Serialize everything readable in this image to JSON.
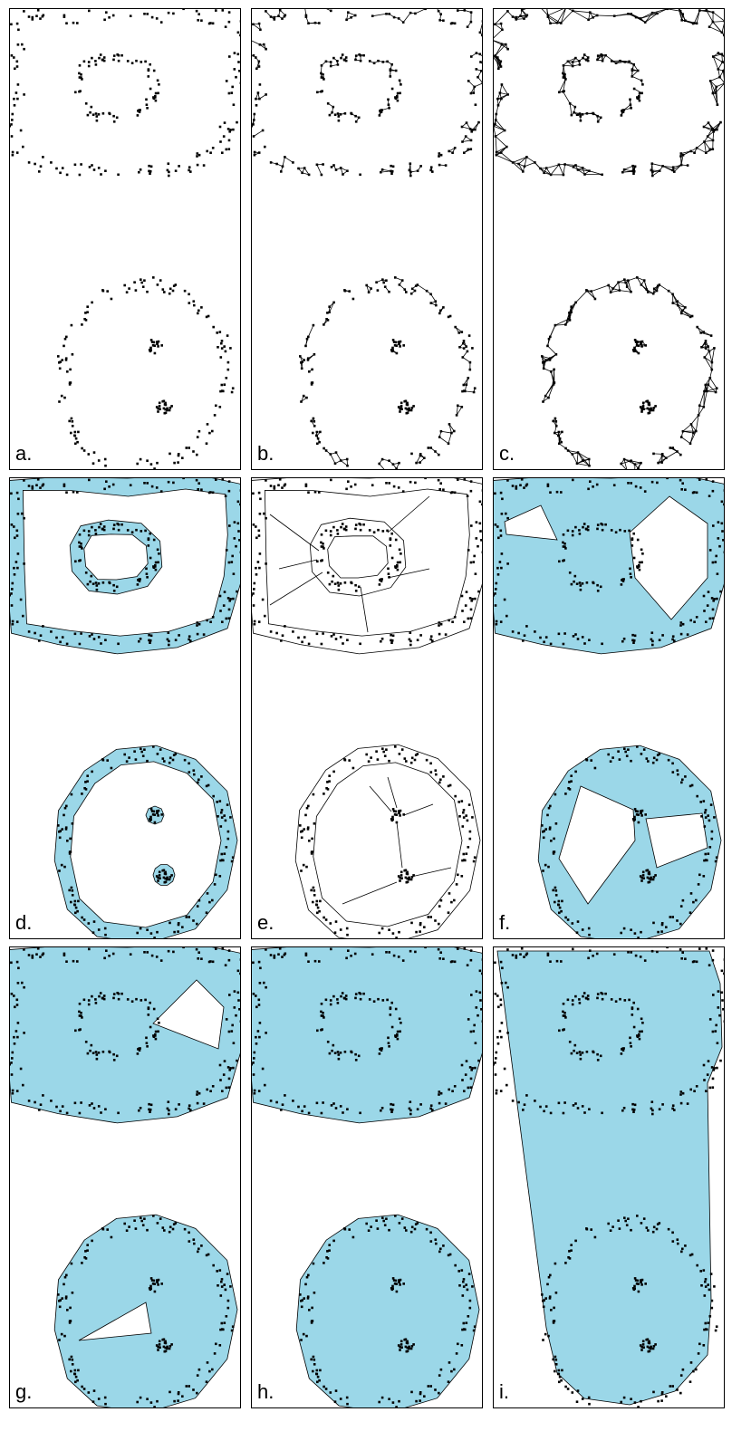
{
  "colors": {
    "fill": "#9bd7e8",
    "points": "#000000",
    "edges": "#000000",
    "background": "#ffffff"
  },
  "panels": [
    {
      "label": "a.",
      "stage": "points"
    },
    {
      "label": "b.",
      "stage": "knn-edges"
    },
    {
      "label": "c.",
      "stage": "dense-edges"
    },
    {
      "label": "d.",
      "stage": "rings"
    },
    {
      "label": "e.",
      "stage": "bridges"
    },
    {
      "label": "f.",
      "stage": "fill-partial"
    },
    {
      "label": "g.",
      "stage": "fill-more"
    },
    {
      "label": "h.",
      "stage": "fill-each"
    },
    {
      "label": "i.",
      "stage": "fill-merged"
    }
  ]
}
